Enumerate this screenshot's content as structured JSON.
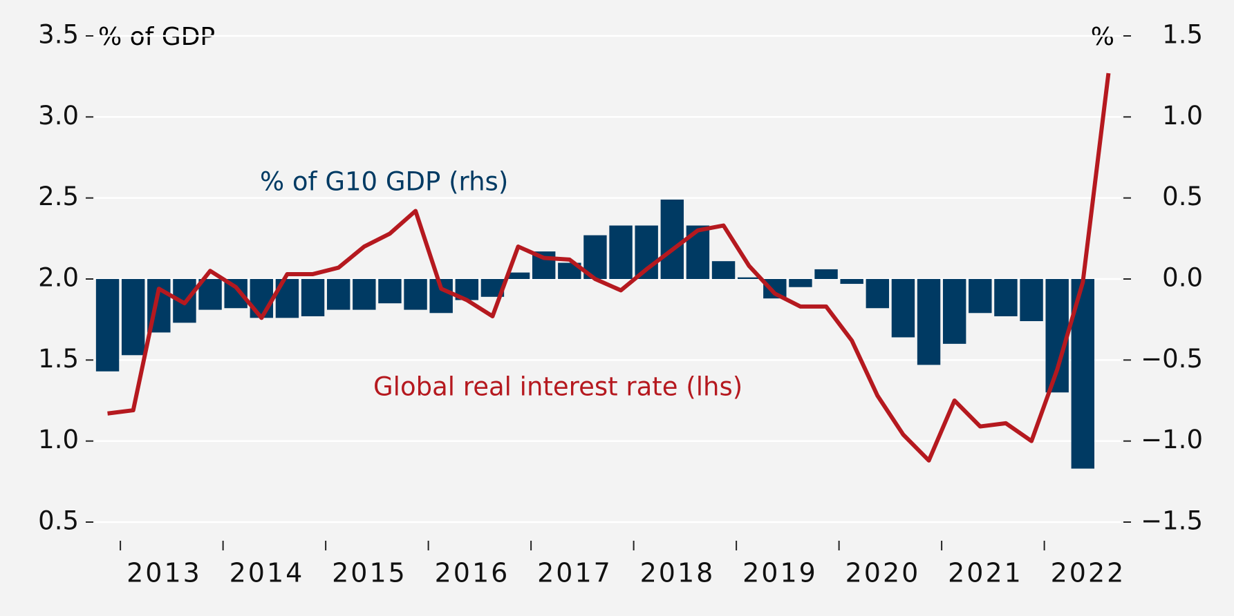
{
  "chart_data": {
    "type": "bar-line",
    "y_label": "% of GDP",
    "y2_label": "%",
    "x": [
      2012.875,
      2013.125,
      2013.375,
      2013.625,
      2013.875,
      2014.125,
      2014.375,
      2014.625,
      2014.875,
      2015.125,
      2015.375,
      2015.625,
      2015.875,
      2016.125,
      2016.375,
      2016.625,
      2016.875,
      2017.125,
      2017.375,
      2017.625,
      2017.875,
      2018.125,
      2018.375,
      2018.625,
      2018.875,
      2019.125,
      2019.375,
      2019.625,
      2019.875,
      2020.125,
      2020.375,
      2020.625,
      2020.875,
      2021.125,
      2021.375,
      2021.625,
      2021.875,
      2022.125,
      2022.375,
      2022.625
    ],
    "xlim": [
      2012.75,
      2022.75
    ],
    "xticks": [
      2013,
      2014,
      2015,
      2016,
      2017,
      2018,
      2019,
      2020,
      2021,
      2022
    ],
    "ylim": [
      0.5,
      3.5
    ],
    "yticks": [
      0.5,
      {
        "value": 1.0,
        "label": "1.0"
      },
      1.5,
      {
        "value": 2.0,
        "label": "2.0"
      },
      2.5,
      {
        "value": 3.0,
        "label": "3.0"
      },
      3.5
    ],
    "y2lim": [
      -1.5,
      1.5
    ],
    "y2ticks": [
      {
        "value": -1.5,
        "label": "−1.5"
      },
      {
        "value": -1.0,
        "label": "−1.0"
      },
      {
        "value": -0.5,
        "label": "−0.5"
      },
      {
        "value": 0.0,
        "label": "0.0"
      },
      0.5,
      {
        "value": 1.0,
        "label": "1.0"
      },
      1.5
    ],
    "grid": true,
    "series": [
      {
        "name": "% of G10 GDP (rhs)",
        "type": "bar",
        "axis": "y2",
        "color": "#003a63",
        "values": [
          -0.57,
          -0.47,
          -0.33,
          -0.27,
          -0.19,
          -0.18,
          -0.24,
          -0.24,
          -0.23,
          -0.19,
          -0.19,
          -0.15,
          -0.19,
          -0.21,
          -0.13,
          -0.11,
          0.04,
          0.17,
          0.1,
          0.27,
          0.33,
          0.33,
          0.49,
          0.33,
          0.11,
          0.01,
          -0.12,
          -0.05,
          0.06,
          -0.03,
          -0.18,
          -0.36,
          -0.53,
          -0.4,
          -0.21,
          -0.23,
          -0.26,
          -0.7,
          -1.17,
          null
        ]
      },
      {
        "name": "Global real interest rate (lhs)",
        "type": "line",
        "color": "#b5191f",
        "values": [
          1.17,
          1.19,
          1.94,
          1.85,
          2.05,
          1.95,
          1.76,
          2.03,
          2.03,
          2.07,
          2.2,
          2.28,
          2.42,
          1.94,
          1.87,
          1.77,
          2.2,
          2.13,
          2.12,
          2.0,
          1.93,
          2.06,
          2.18,
          2.3,
          2.33,
          2.08,
          1.91,
          1.83,
          1.83,
          1.62,
          1.28,
          1.04,
          0.88,
          1.25,
          1.09,
          1.11,
          1.0,
          1.44,
          1.98,
          3.27
        ]
      }
    ]
  }
}
